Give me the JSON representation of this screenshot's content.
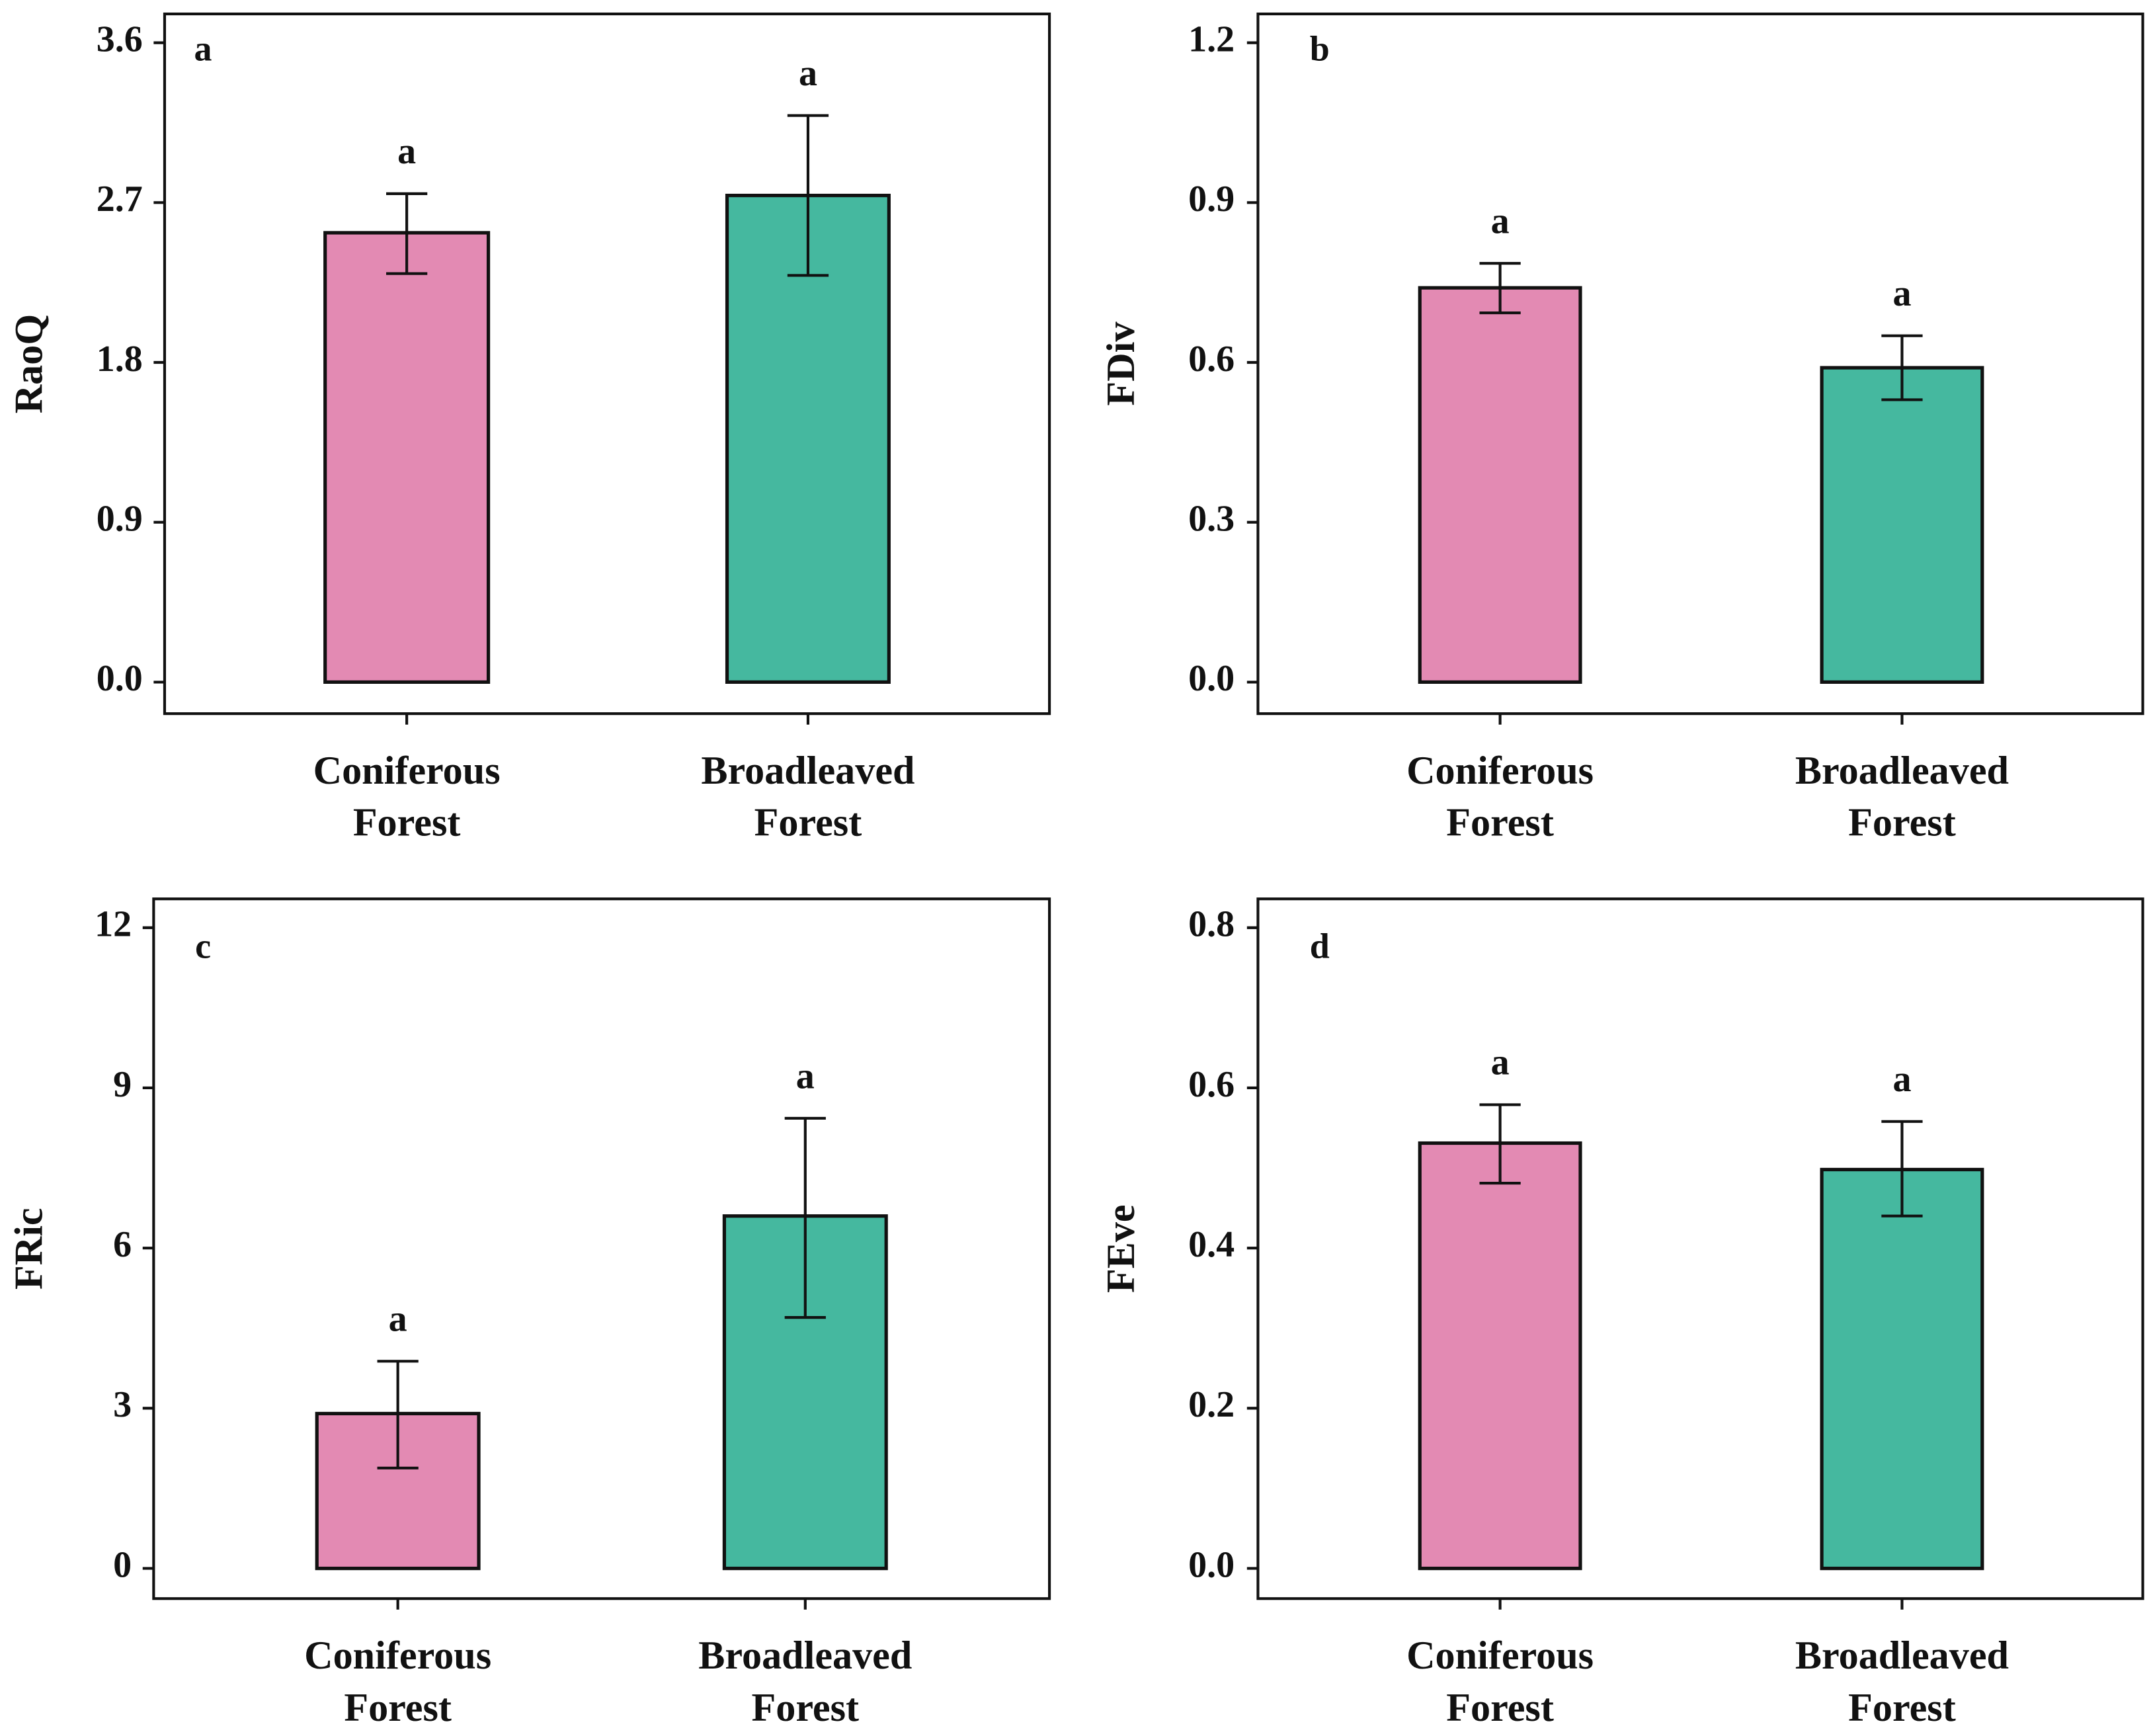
{
  "colors": {
    "Coniferous Forest": "#e38ab3",
    "Broadleaved Forest": "#45b89f",
    "axis": "#111111"
  },
  "chart_data": [
    {
      "type": "bar",
      "panel_label": "a",
      "ylabel": "RaoQ",
      "ylim": [
        0,
        3.6
      ],
      "yticks": [
        "0.0",
        "0.9",
        "1.8",
        "2.7",
        "3.6"
      ],
      "ytick_values": [
        0,
        0.9,
        1.8,
        2.7,
        3.6
      ],
      "categories": [
        [
          "Coniferous",
          "Forest"
        ],
        [
          "Broadleaved",
          "Forest"
        ]
      ],
      "values": [
        2.53,
        2.74
      ],
      "error_upper": [
        2.75,
        3.19
      ],
      "error_lower": [
        2.3,
        2.29
      ],
      "significance": [
        "a",
        "a"
      ],
      "grid": false
    },
    {
      "type": "bar",
      "panel_label": "b",
      "ylabel": "FDiv",
      "ylim": [
        0,
        1.2
      ],
      "yticks": [
        "0.0",
        "0.3",
        "0.6",
        "0.9",
        "1.2"
      ],
      "ytick_values": [
        0,
        0.3,
        0.6,
        0.9,
        1.2
      ],
      "categories": [
        [
          "Coniferous",
          "Forest"
        ],
        [
          "Broadleaved",
          "Forest"
        ]
      ],
      "values": [
        0.74,
        0.59
      ],
      "error_upper": [
        0.786,
        0.65
      ],
      "error_lower": [
        0.693,
        0.53
      ],
      "significance": [
        "a",
        "a"
      ],
      "grid": false
    },
    {
      "type": "bar",
      "panel_label": "c",
      "ylabel": "FRic",
      "ylim": [
        0,
        12
      ],
      "yticks": [
        "0",
        "3",
        "6",
        "9",
        "12"
      ],
      "ytick_values": [
        0,
        3,
        6,
        9,
        12
      ],
      "categories": [
        [
          "Coniferous",
          "Forest"
        ],
        [
          "Broadleaved",
          "Forest"
        ]
      ],
      "values": [
        2.9,
        6.6
      ],
      "error_upper": [
        3.88,
        8.43
      ],
      "error_lower": [
        1.88,
        4.7
      ],
      "significance": [
        "a",
        "a"
      ],
      "grid": false
    },
    {
      "type": "bar",
      "panel_label": "d",
      "ylabel": "FEve",
      "ylim": [
        0,
        0.8
      ],
      "yticks": [
        "0.0",
        "0.2",
        "0.4",
        "0.6",
        "0.8"
      ],
      "ytick_values": [
        0,
        0.2,
        0.4,
        0.6,
        0.8
      ],
      "categories": [
        [
          "Coniferous",
          "Forest"
        ],
        [
          "Broadleaved",
          "Forest"
        ]
      ],
      "values": [
        0.531,
        0.498
      ],
      "error_upper": [
        0.579,
        0.558
      ],
      "error_lower": [
        0.481,
        0.44
      ],
      "significance": [
        "a",
        "a"
      ],
      "grid": false
    }
  ]
}
